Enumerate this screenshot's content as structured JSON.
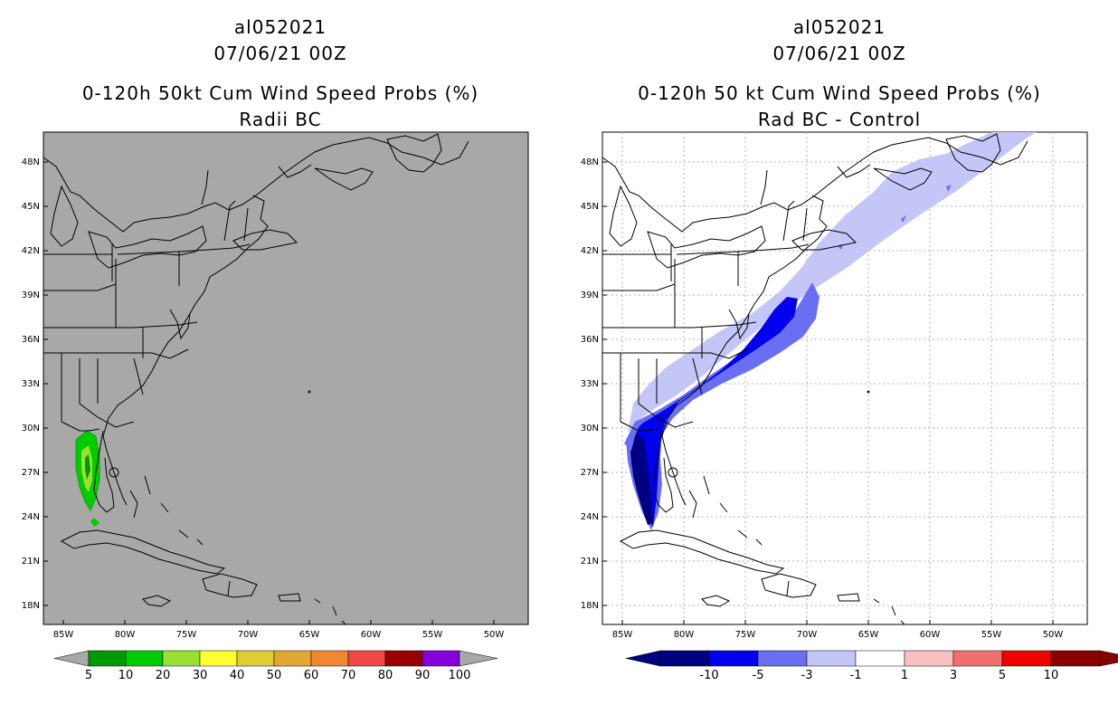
{
  "left": {
    "storm_id": "al052021",
    "datetime": "07/06/21 00Z",
    "title": "0-120h 50kt Cum Wind Speed Probs (%)",
    "subtitle": "Radii BC",
    "background_color": "#a8a8a8",
    "colorbar": {
      "colors": [
        "#009900",
        "#00cc00",
        "#99e033",
        "#ffff33",
        "#e0cc33",
        "#e0a833",
        "#f08833",
        "#f04848",
        "#990000",
        "#8800dd"
      ],
      "labels": [
        "5",
        "10",
        "20",
        "30",
        "40",
        "50",
        "60",
        "70",
        "80",
        "90",
        "100"
      ]
    }
  },
  "right": {
    "storm_id": "al052021",
    "datetime": "07/06/21 00Z",
    "title": "0-120h 50 kt Cum Wind Speed Probs (%)",
    "subtitle": "Rad BC - Control",
    "background_color": "#ffffff",
    "colorbar": {
      "colors": [
        "#000080",
        "#0000ee",
        "#6a6ef0",
        "#c4c6f8",
        "#ffffff",
        "#f8c0c0",
        "#f07070",
        "#f00000",
        "#880000"
      ],
      "labels": [
        "-10",
        "-5",
        "-3",
        "-1",
        "1",
        "3",
        "5",
        "10"
      ]
    }
  },
  "axes": {
    "lat_labels": [
      "48N",
      "45N",
      "42N",
      "39N",
      "36N",
      "33N",
      "30N",
      "27N",
      "24N",
      "21N",
      "18N"
    ],
    "lon_labels": [
      "85W",
      "80W",
      "75W",
      "70W",
      "65W",
      "60W",
      "55W",
      "50W"
    ]
  }
}
